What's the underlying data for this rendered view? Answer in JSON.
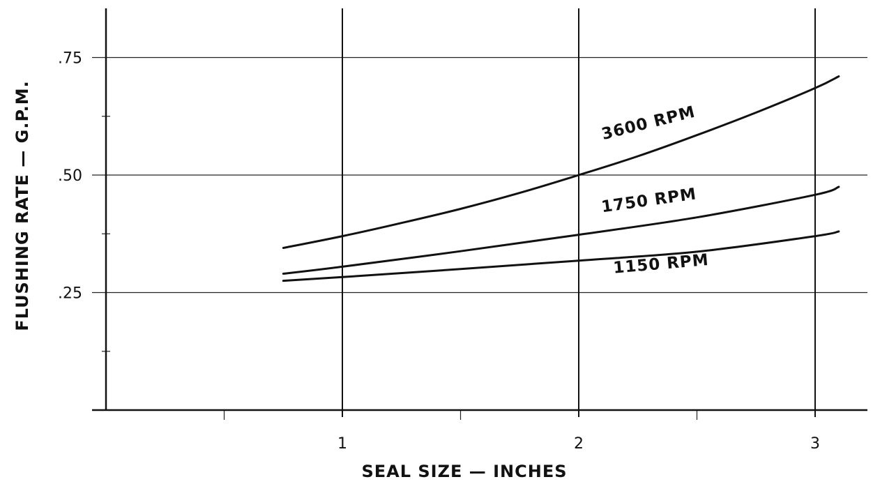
{
  "chart_data": {
    "type": "line",
    "title": "",
    "xlabel": "SEAL SIZE  —  INCHES",
    "ylabel": "FLUSHING RATE  —  G.P.M.",
    "xlim": [
      0,
      3.2
    ],
    "ylim": [
      0,
      0.85
    ],
    "x_ticks": [
      {
        "value": 1,
        "label": "1"
      },
      {
        "value": 2,
        "label": "2"
      },
      {
        "value": 3,
        "label": "3"
      }
    ],
    "x_minor_ticks": [
      0.5,
      1.5,
      2.5
    ],
    "y_ticks": [
      {
        "value": 0.25,
        "label": ".25"
      },
      {
        "value": 0.5,
        "label": ".50"
      },
      {
        "value": 0.75,
        "label": ".75"
      }
    ],
    "y_minor_ticks": [
      0.125,
      0.375,
      0.625
    ],
    "grid": true,
    "series": [
      {
        "name": "3600 RPM",
        "x": [
          0.75,
          1.0,
          1.25,
          1.5,
          1.75,
          2.0,
          2.25,
          2.5,
          2.75,
          3.0,
          3.1
        ],
        "y": [
          0.345,
          0.37,
          0.398,
          0.428,
          0.462,
          0.5,
          0.54,
          0.585,
          0.633,
          0.685,
          0.71
        ]
      },
      {
        "name": "1750 RPM",
        "x": [
          0.75,
          1.0,
          1.5,
          2.0,
          2.5,
          3.0,
          3.1
        ],
        "y": [
          0.29,
          0.305,
          0.338,
          0.373,
          0.41,
          0.458,
          0.475
        ]
      },
      {
        "name": "1150 RPM",
        "x": [
          0.75,
          1.0,
          1.5,
          2.0,
          2.5,
          3.0,
          3.1
        ],
        "y": [
          0.275,
          0.283,
          0.3,
          0.318,
          0.337,
          0.37,
          0.38
        ]
      }
    ],
    "annotations": [
      {
        "text": "3600 RPM",
        "series": "3600 RPM",
        "x": 2.3,
        "y": 0.6,
        "angle": -14
      },
      {
        "text": "1750 RPM",
        "series": "1750 RPM",
        "x": 2.3,
        "y": 0.435,
        "angle": -8
      },
      {
        "text": "1150 RPM",
        "series": "1150 RPM",
        "x": 2.35,
        "y": 0.3,
        "angle": -5
      }
    ]
  }
}
